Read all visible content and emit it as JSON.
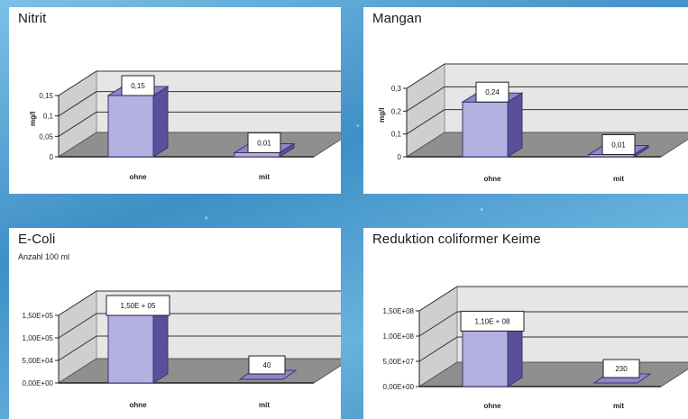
{
  "charts": [
    {
      "title": "Nitrit",
      "subtitle": "",
      "ylabel": "mg/l",
      "ylim": [
        0,
        0.15
      ],
      "yticks": [
        "0",
        "0,05",
        "0,1",
        "0,15"
      ],
      "categories": [
        "ohne",
        "mit"
      ],
      "values": [
        0.15,
        0.01
      ],
      "data_labels": [
        "0,15",
        "0,01"
      ]
    },
    {
      "title": "Mangan",
      "subtitle": "",
      "ylabel": "mg/l",
      "ylim": [
        0,
        0.3
      ],
      "yticks": [
        "0",
        "0,1",
        "0,2",
        "0,3"
      ],
      "categories": [
        "ohne",
        "mit"
      ],
      "values": [
        0.24,
        0.01
      ],
      "data_labels": [
        "0,24",
        "0,01"
      ]
    },
    {
      "title": "E-Coli",
      "subtitle": "Anzahl 100 ml",
      "ylabel": "",
      "ylim": [
        0,
        150000
      ],
      "yticks": [
        "0,00E+00",
        "5,00E+04",
        "1,00E+05",
        "1,50E+05"
      ],
      "categories": [
        "ohne",
        "mit"
      ],
      "values": [
        150000,
        40
      ],
      "data_labels": [
        "1,50E + 05",
        "40"
      ]
    },
    {
      "title": "Reduktion coliformer Keime",
      "subtitle": "",
      "ylabel": "",
      "ylim": [
        0,
        150000000
      ],
      "yticks": [
        "0,00E+00",
        "5,00E+07",
        "1,00E+08",
        "1,50E+08"
      ],
      "categories": [
        "ohne",
        "mit"
      ],
      "values": [
        110000000,
        230
      ],
      "data_labels": [
        "1,10E + 08",
        "230"
      ]
    }
  ],
  "chart_data": [
    {
      "type": "bar",
      "title": "Nitrit",
      "ylabel": "mg/l",
      "categories": [
        "ohne",
        "mit"
      ],
      "values": [
        0.15,
        0.01
      ],
      "ylim": [
        0,
        0.15
      ],
      "grid": true,
      "style": "3d"
    },
    {
      "type": "bar",
      "title": "Mangan",
      "ylabel": "mg/l",
      "categories": [
        "ohne",
        "mit"
      ],
      "values": [
        0.24,
        0.01
      ],
      "ylim": [
        0,
        0.3
      ],
      "grid": true,
      "style": "3d"
    },
    {
      "type": "bar",
      "title": "E-Coli",
      "subtitle": "Anzahl 100 ml",
      "categories": [
        "ohne",
        "mit"
      ],
      "values": [
        150000,
        40
      ],
      "ylim": [
        0,
        150000
      ],
      "grid": true,
      "style": "3d"
    },
    {
      "type": "bar",
      "title": "Reduktion coliformer Keime",
      "categories": [
        "ohne",
        "mit"
      ],
      "values": [
        110000000,
        230
      ],
      "ylim": [
        0,
        150000000
      ],
      "grid": true,
      "style": "3d"
    }
  ],
  "colors": {
    "bar_front": "#b3b0e2",
    "bar_side": "#5b4f9a",
    "bar_top": "#8c86c9",
    "floor": "#8f8f8f",
    "wall": "#e6e6e6",
    "background": "#5aa8d6"
  }
}
